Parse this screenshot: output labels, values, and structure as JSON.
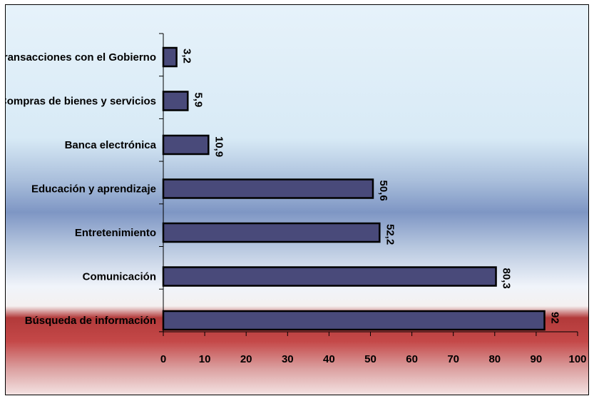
{
  "chart_data": {
    "type": "bar",
    "orientation": "horizontal",
    "categories": [
      "Transacciones con el Gobierno",
      "Compras de bienes y servicios",
      "Banca electrónica",
      "Educación y aprendizaje",
      "Entretenimiento",
      "Comunicación",
      "Búsqueda de información"
    ],
    "values": [
      3.2,
      5.9,
      10.9,
      50.6,
      52.2,
      80.3,
      92
    ],
    "value_labels": [
      "3,2",
      "5,9",
      "10,9",
      "50,6",
      "52,2",
      "80,3",
      "92"
    ],
    "xlim": [
      0,
      100
    ],
    "xticks": [
      "0",
      "10",
      "20",
      "30",
      "40",
      "50",
      "60",
      "70",
      "80",
      "90",
      "100"
    ],
    "grid": false,
    "legend": "none",
    "bar_color": "#494a7a",
    "bar_edge_color": "#000000"
  }
}
